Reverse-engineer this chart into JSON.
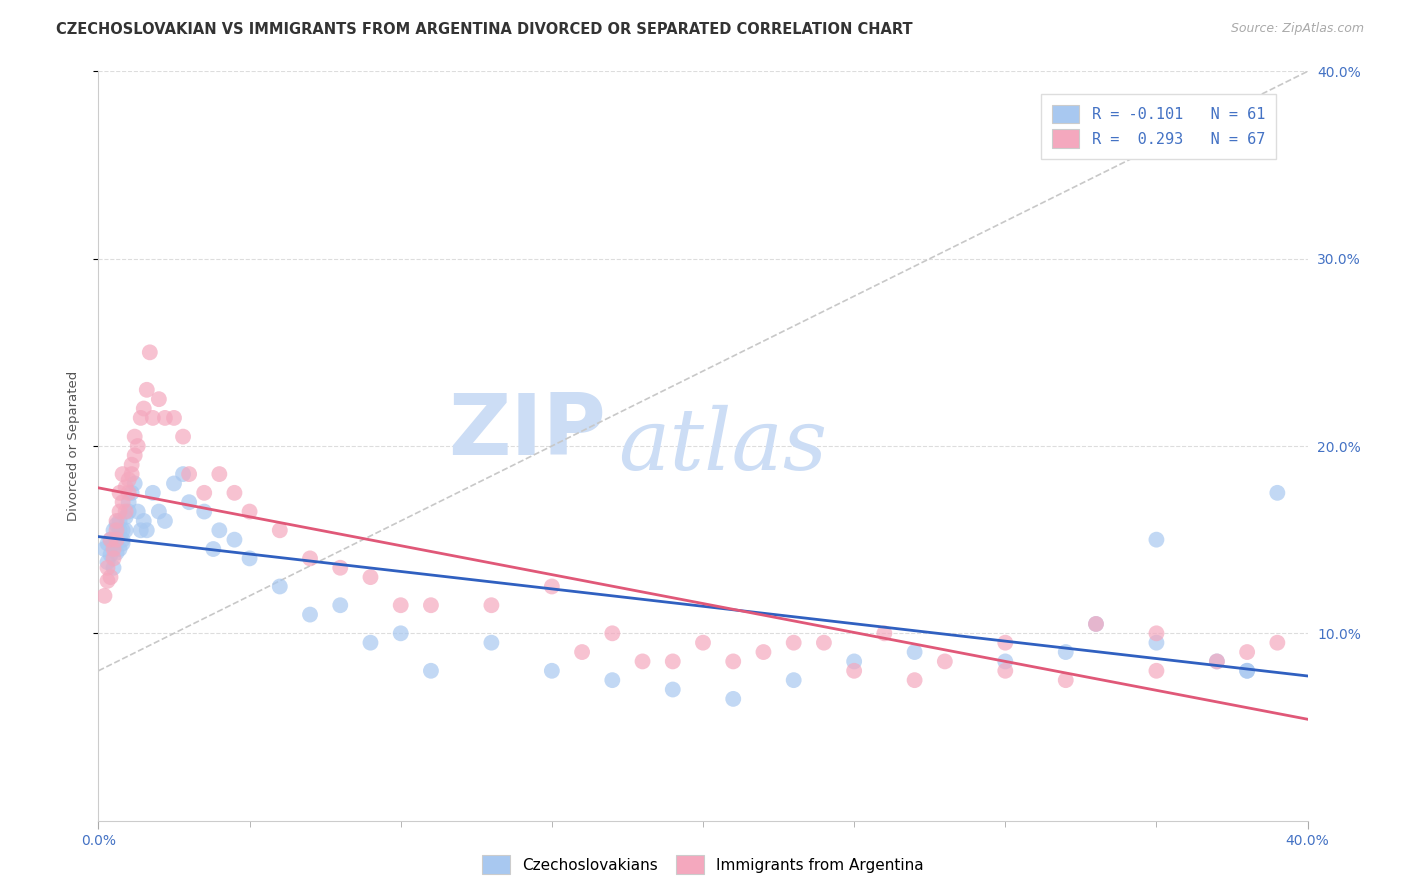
{
  "title": "CZECHOSLOVAKIAN VS IMMIGRANTS FROM ARGENTINA DIVORCED OR SEPARATED CORRELATION CHART",
  "source_text": "Source: ZipAtlas.com",
  "ylabel": "Divorced or Separated",
  "legend_label_1": "Czechoslovakians",
  "legend_label_2": "Immigrants from Argentina",
  "r1": "-0.101",
  "n1": "61",
  "r2": "0.293",
  "n2": "67",
  "blue_color": "#a8c8f0",
  "pink_color": "#f4a8be",
  "blue_line_color": "#3060c0",
  "pink_line_color": "#e05878",
  "dash_line_color": "#c8c8c8",
  "watermark_color": "#ccddf5",
  "grid_color": "#e0e8f0",
  "xlim": [
    0.0,
    0.4
  ],
  "ylim": [
    0.0,
    0.4
  ],
  "right_yticks": [
    0.1,
    0.2,
    0.3,
    0.4
  ],
  "right_yticklabels": [
    "10.0%",
    "20.0%",
    "30.0%",
    "40.0%"
  ],
  "xtick_labels_shown": [
    "0.0%",
    "40.0%"
  ],
  "title_fontsize": 10.5,
  "axis_label_fontsize": 9.5,
  "tick_fontsize": 10,
  "legend_fontsize": 11,
  "blue_x": [
    0.002,
    0.003,
    0.003,
    0.004,
    0.004,
    0.005,
    0.005,
    0.005,
    0.006,
    0.006,
    0.006,
    0.007,
    0.007,
    0.007,
    0.008,
    0.008,
    0.008,
    0.009,
    0.009,
    0.01,
    0.01,
    0.011,
    0.012,
    0.013,
    0.014,
    0.015,
    0.016,
    0.018,
    0.02,
    0.022,
    0.025,
    0.028,
    0.03,
    0.035,
    0.038,
    0.04,
    0.045,
    0.05,
    0.06,
    0.07,
    0.08,
    0.09,
    0.1,
    0.11,
    0.13,
    0.15,
    0.17,
    0.19,
    0.21,
    0.23,
    0.25,
    0.27,
    0.3,
    0.32,
    0.35,
    0.37,
    0.38,
    0.39,
    0.35,
    0.38,
    0.33
  ],
  "blue_y": [
    0.145,
    0.148,
    0.138,
    0.15,
    0.142,
    0.155,
    0.148,
    0.135,
    0.15,
    0.143,
    0.158,
    0.145,
    0.155,
    0.16,
    0.15,
    0.155,
    0.148,
    0.162,
    0.155,
    0.17,
    0.165,
    0.175,
    0.18,
    0.165,
    0.155,
    0.16,
    0.155,
    0.175,
    0.165,
    0.16,
    0.18,
    0.185,
    0.17,
    0.165,
    0.145,
    0.155,
    0.15,
    0.14,
    0.125,
    0.11,
    0.115,
    0.095,
    0.1,
    0.08,
    0.095,
    0.08,
    0.075,
    0.07,
    0.065,
    0.075,
    0.085,
    0.09,
    0.085,
    0.09,
    0.095,
    0.085,
    0.08,
    0.175,
    0.15,
    0.08,
    0.105
  ],
  "pink_x": [
    0.002,
    0.003,
    0.003,
    0.004,
    0.004,
    0.005,
    0.005,
    0.006,
    0.006,
    0.006,
    0.007,
    0.007,
    0.008,
    0.008,
    0.009,
    0.009,
    0.01,
    0.01,
    0.011,
    0.011,
    0.012,
    0.012,
    0.013,
    0.014,
    0.015,
    0.016,
    0.017,
    0.018,
    0.02,
    0.022,
    0.025,
    0.028,
    0.03,
    0.035,
    0.04,
    0.045,
    0.05,
    0.06,
    0.07,
    0.08,
    0.09,
    0.1,
    0.11,
    0.13,
    0.15,
    0.17,
    0.19,
    0.21,
    0.23,
    0.25,
    0.27,
    0.3,
    0.32,
    0.35,
    0.37,
    0.38,
    0.39,
    0.35,
    0.33,
    0.3,
    0.28,
    0.26,
    0.24,
    0.22,
    0.2,
    0.18,
    0.16
  ],
  "pink_y": [
    0.12,
    0.128,
    0.135,
    0.13,
    0.15,
    0.145,
    0.14,
    0.155,
    0.16,
    0.15,
    0.165,
    0.175,
    0.17,
    0.185,
    0.165,
    0.178,
    0.182,
    0.175,
    0.19,
    0.185,
    0.195,
    0.205,
    0.2,
    0.215,
    0.22,
    0.23,
    0.25,
    0.215,
    0.225,
    0.215,
    0.215,
    0.205,
    0.185,
    0.175,
    0.185,
    0.175,
    0.165,
    0.155,
    0.14,
    0.135,
    0.13,
    0.115,
    0.115,
    0.115,
    0.125,
    0.1,
    0.085,
    0.085,
    0.095,
    0.08,
    0.075,
    0.08,
    0.075,
    0.08,
    0.085,
    0.09,
    0.095,
    0.1,
    0.105,
    0.095,
    0.085,
    0.1,
    0.095,
    0.09,
    0.095,
    0.085,
    0.09
  ]
}
